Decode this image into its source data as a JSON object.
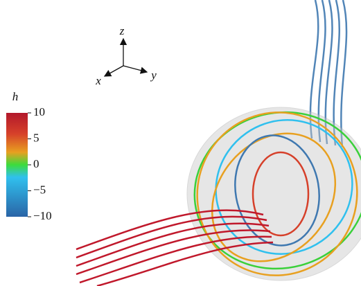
{
  "axes_triad": {
    "x": "x",
    "y": "y",
    "z": "z"
  },
  "colorbar": {
    "title": "h",
    "lim": [
      -10,
      10
    ],
    "ticks": [
      10,
      5,
      0,
      {
        "value": -5,
        "label": "−5"
      },
      {
        "value": -10,
        "label": "−10"
      }
    ]
  }
}
